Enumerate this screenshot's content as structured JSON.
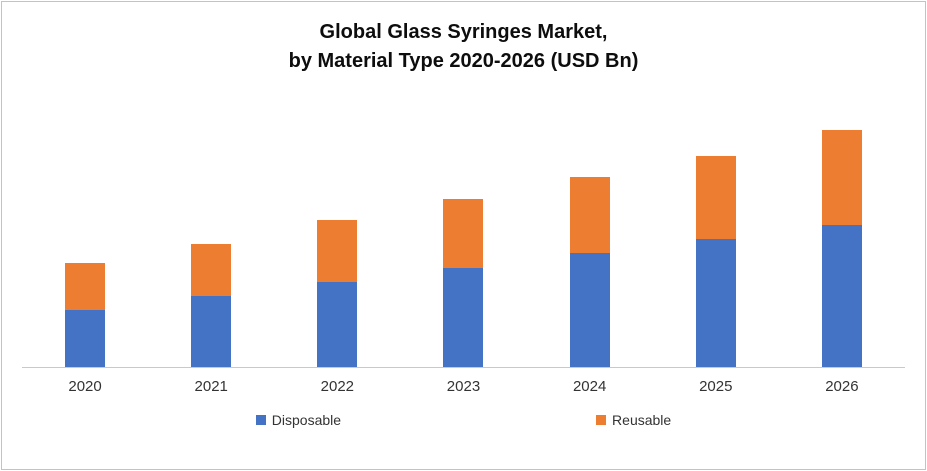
{
  "title": {
    "line1": "Global  Glass Syringes Market,",
    "line2": "by Material Type 2020-2026 (USD Bn)"
  },
  "chart_data": {
    "type": "bar",
    "stacked": true,
    "title": "Global Glass Syringes Market, by Material Type 2020-2026 (USD Bn)",
    "categories": [
      "2020",
      "2021",
      "2022",
      "2023",
      "2024",
      "2025",
      "2026"
    ],
    "series": [
      {
        "name": "Disposable",
        "color": "#4472C4",
        "values": [
          1.2,
          1.5,
          1.8,
          2.1,
          2.4,
          2.7,
          3.0
        ]
      },
      {
        "name": "Reusable",
        "color": "#ED7D31",
        "values": [
          1.0,
          1.1,
          1.3,
          1.45,
          1.6,
          1.75,
          2.0
        ]
      }
    ],
    "ylim": [
      0,
      5.6
    ],
    "ylabel": "",
    "xlabel": "",
    "grid": false,
    "y_axis_visible": false,
    "legend_position": "bottom",
    "legend_labels": [
      "Disposable",
      "Reusable"
    ]
  }
}
